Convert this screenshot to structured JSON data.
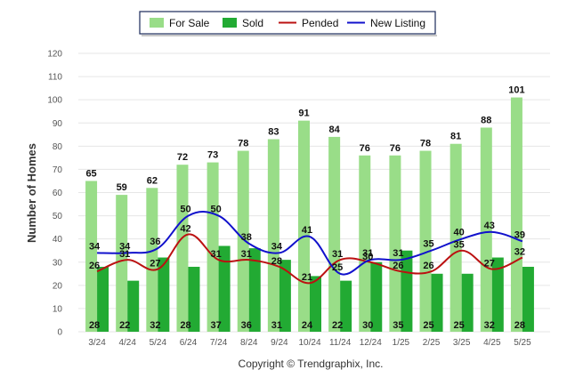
{
  "chart_data": {
    "type": "bar",
    "categories": [
      "3/24",
      "4/24",
      "5/24",
      "6/24",
      "7/24",
      "8/24",
      "9/24",
      "10/24",
      "11/24",
      "12/24",
      "1/25",
      "2/25",
      "3/25",
      "4/25",
      "5/25"
    ],
    "series": [
      {
        "name": "For Sale",
        "type": "bar",
        "color": "#99dd88",
        "values": [
          65,
          59,
          62,
          72,
          73,
          78,
          83,
          91,
          84,
          76,
          76,
          78,
          81,
          88,
          101
        ]
      },
      {
        "name": "Sold",
        "type": "bar",
        "color": "#22aa33",
        "values": [
          28,
          22,
          32,
          28,
          37,
          36,
          31,
          24,
          22,
          30,
          35,
          25,
          25,
          32,
          28
        ]
      },
      {
        "name": "Pended",
        "type": "line",
        "color": "#bb1111",
        "values": [
          26,
          31,
          27,
          42,
          31,
          31,
          28,
          21,
          31,
          30,
          26,
          26,
          35,
          27,
          32
        ]
      },
      {
        "name": "New Listing",
        "type": "line",
        "color": "#1111cc",
        "values": [
          34,
          34,
          36,
          50,
          50,
          38,
          34,
          41,
          25,
          31,
          31,
          35,
          40,
          43,
          39
        ]
      }
    ],
    "ylabel": "Number of Homes",
    "xlabel": "",
    "ylim": [
      0,
      120
    ],
    "yticks": [
      0,
      10,
      20,
      30,
      40,
      50,
      60,
      70,
      80,
      90,
      100,
      110,
      120
    ],
    "grid": true,
    "legend": "top-center"
  },
  "footer": "Copyright © Trendgraphix, Inc."
}
